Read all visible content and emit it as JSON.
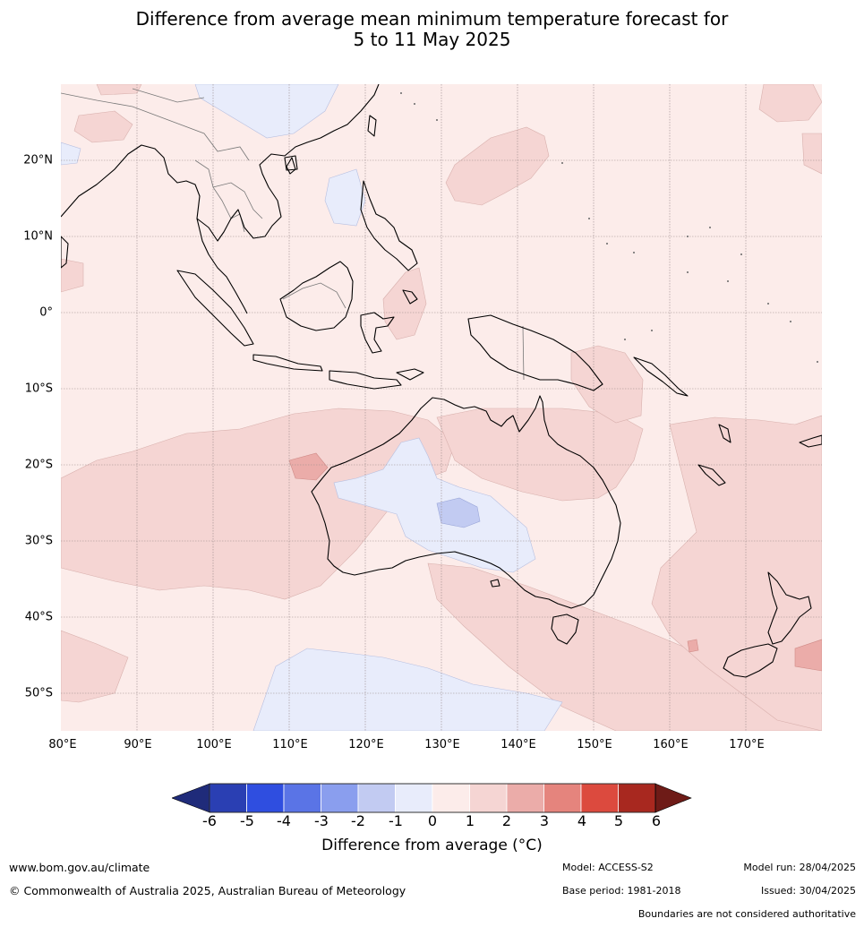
{
  "title": {
    "line1": "Difference from average mean minimum temperature forecast for",
    "line2": "5 to 11 May 2025"
  },
  "map": {
    "lat_labels": [
      "20°N",
      "10°N",
      "0°",
      "10°S",
      "20°S",
      "30°S",
      "40°S",
      "50°S"
    ],
    "lon_labels": [
      "80°E",
      "90°E",
      "100°E",
      "110°E",
      "120°E",
      "130°E",
      "140°E",
      "150°E",
      "160°E",
      "170°E"
    ],
    "colors": {
      "anomaly_0_1": "#fcecea",
      "anomaly_1_2": "#f5d5d3",
      "anomaly_2_3": "#ebaca9",
      "anomaly_m1_0": "#e8ecfb",
      "anomaly_m2_m1": "#c2cbf2",
      "coastline": "#000000",
      "boundary": "#777777",
      "grid": "#9a8a8a"
    }
  },
  "colorbar": {
    "ticks": [
      "-6",
      "-5",
      "-4",
      "-3",
      "-2",
      "-1",
      "0",
      "1",
      "2",
      "3",
      "4",
      "5",
      "6"
    ],
    "colors": [
      "#1f2b7a",
      "#2a3fb3",
      "#2f4ee0",
      "#5a74e6",
      "#8a9eee",
      "#c2cbf2",
      "#e8ecfb",
      "#fcecea",
      "#f5d5d3",
      "#ebaca9",
      "#e5847d",
      "#dc4a3e",
      "#a8281f",
      "#6e1b17"
    ],
    "label": "Difference from average (°C)"
  },
  "footer": {
    "website": "www.bom.gov.au/climate",
    "copyright": "© Commonwealth of Australia 2025, Australian Bureau of Meteorology",
    "model": "Model: ACCESS-S2",
    "base_period": "Base period: 1981-2018",
    "model_run": "Model run: 28/04/2025",
    "issued": "Issued: 30/04/2025",
    "disclaimer": "Boundaries are not considered authoritative"
  }
}
